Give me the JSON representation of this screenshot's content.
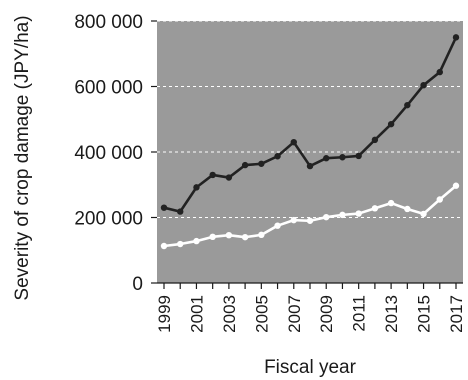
{
  "chart_data": {
    "type": "line",
    "title": "",
    "xlabel": "Fiscal year",
    "ylabel": "Severity of crop damage (JPY/ha)",
    "x": [
      1999,
      2000,
      2001,
      2002,
      2003,
      2004,
      2005,
      2006,
      2007,
      2008,
      2009,
      2010,
      2011,
      2012,
      2013,
      2014,
      2015,
      2016,
      2017
    ],
    "x_tick_labels": [
      "1999",
      "2001",
      "2003",
      "2005",
      "2007",
      "2009",
      "2011",
      "2013",
      "2015",
      "2017"
    ],
    "ylim": [
      0,
      800000
    ],
    "y_ticks": [
      0,
      200000,
      400000,
      600000,
      800000
    ],
    "y_tick_labels": [
      "0",
      "200 000",
      "400 000",
      "600 000",
      "800 000"
    ],
    "grid": true,
    "plot_background": "#9a9a9a",
    "series": [
      {
        "color": "#222222",
        "values": [
          230000,
          218000,
          292000,
          330000,
          322000,
          360000,
          364000,
          387000,
          430000,
          357000,
          381000,
          384000,
          388000,
          437000,
          485000,
          543000,
          604000,
          644000,
          750000
        ]
      },
      {
        "color": "#ffffff",
        "values": [
          113000,
          119000,
          128000,
          141000,
          146000,
          140000,
          147000,
          175000,
          192000,
          190000,
          201000,
          208000,
          212000,
          228000,
          244000,
          226000,
          211000,
          255000,
          297000
        ]
      }
    ]
  }
}
